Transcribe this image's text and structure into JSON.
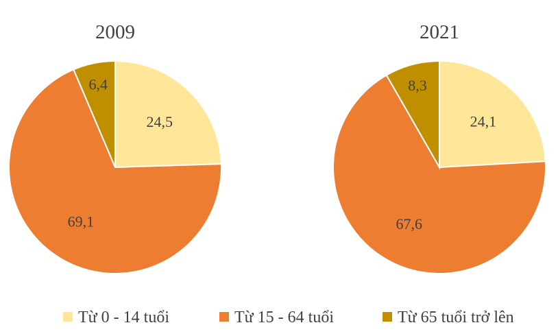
{
  "chart_data": [
    {
      "type": "pie",
      "title": "2009",
      "categories": [
        "Từ 0 - 14 tuổi",
        "Từ 15 - 64 tuổi",
        "Từ 65 tuổi trở lên"
      ],
      "values": [
        24.5,
        69.1,
        6.4
      ],
      "data_labels": [
        "24,5",
        "69,1",
        "6,4"
      ]
    },
    {
      "type": "pie",
      "title": "2021",
      "categories": [
        "Từ 0 - 14 tuổi",
        "Từ 15 - 64 tuổi",
        "Từ 65 tuổi trở lên"
      ],
      "values": [
        24.1,
        67.6,
        8.3
      ],
      "data_labels": [
        "24,1",
        "67,6",
        "8,3"
      ]
    }
  ],
  "legend": {
    "items": [
      {
        "label": "Từ 0 - 14 tuổi",
        "color": "#FFE699"
      },
      {
        "label": "Từ 15 - 64 tuổi",
        "color": "#ED7D31"
      },
      {
        "label": "Từ 65 tuổi trở lên",
        "color": "#BF8F00"
      }
    ],
    "placement": "bottom"
  },
  "colors": [
    "#FFE699",
    "#ED7D31",
    "#BF8F00"
  ]
}
